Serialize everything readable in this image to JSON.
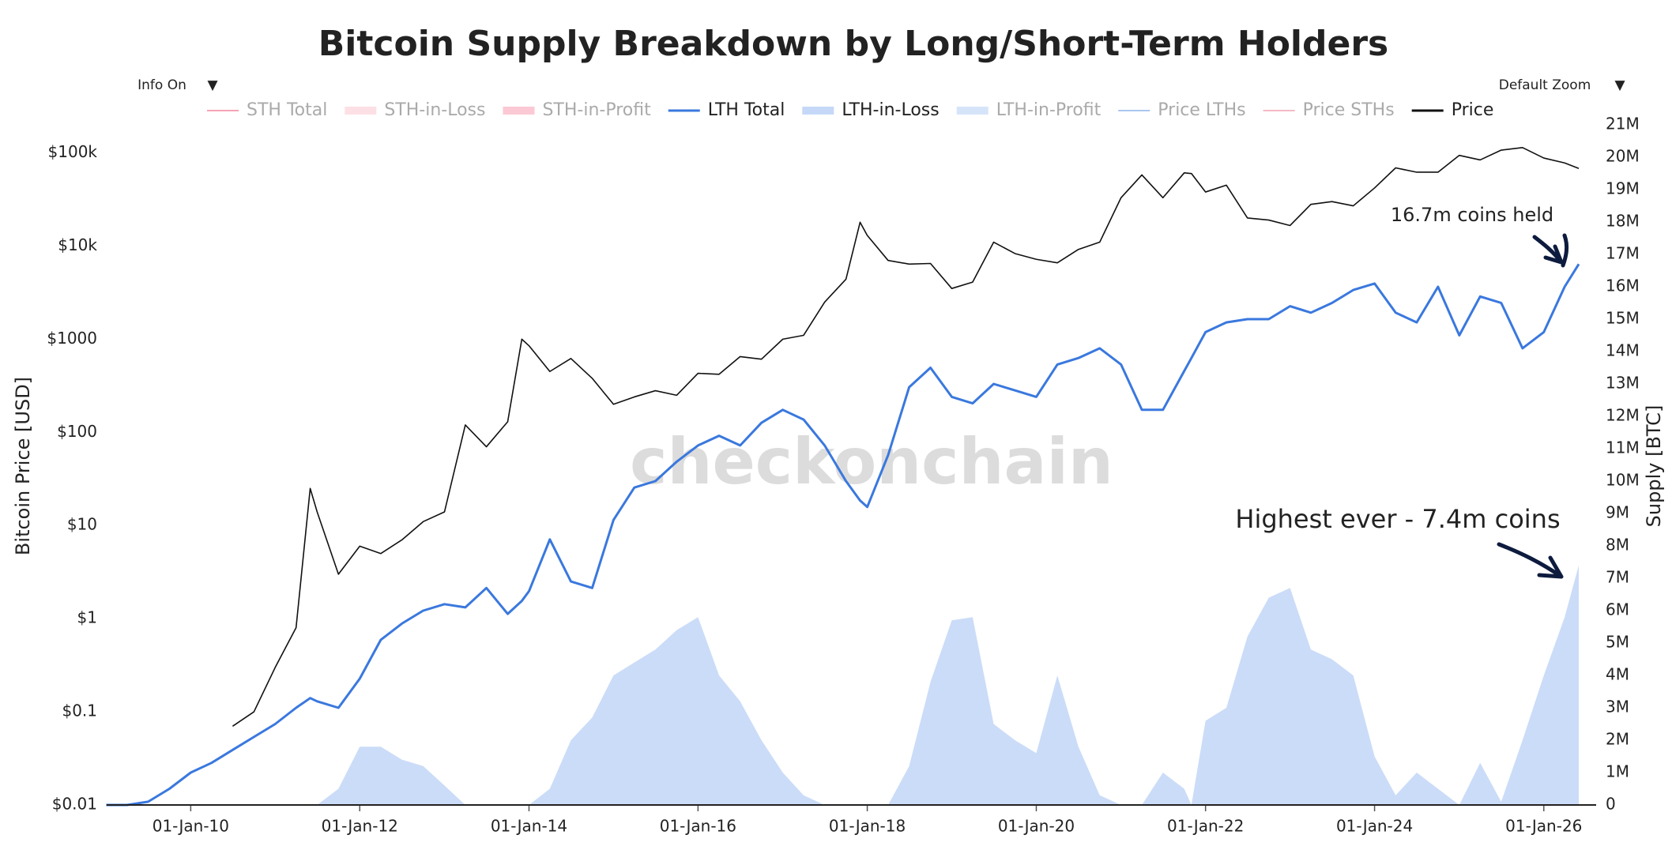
{
  "chart_data": {
    "type": "line",
    "title": "Bitcoin Supply Breakdown by Long/Short-Term Holders",
    "controls": [
      {
        "label": "Info On",
        "icon": "▼"
      },
      {
        "label": "Default Zoom",
        "icon": "▼"
      }
    ],
    "watermark": "checkonchain",
    "y_label": "Bitcoin Price [USD]",
    "y2_label": "Supply [BTC]",
    "log_y": true,
    "grid": false,
    "legend": "top",
    "xlim": [
      "2009-01-03",
      "2026-08-15"
    ],
    "xticks": [
      {
        "value": "2010-01-01",
        "label": "01-Jan-10"
      },
      {
        "value": "2012-01-01",
        "label": "01-Jan-12"
      },
      {
        "value": "2014-01-01",
        "label": "01-Jan-14"
      },
      {
        "value": "2016-01-01",
        "label": "01-Jan-16"
      },
      {
        "value": "2018-01-01",
        "label": "01-Jan-18"
      },
      {
        "value": "2020-01-01",
        "label": "01-Jan-20"
      },
      {
        "value": "2022-01-01",
        "label": "01-Jan-22"
      },
      {
        "value": "2024-01-01",
        "label": "01-Jan-24"
      },
      {
        "value": "2026-01-01",
        "label": "01-Jan-26"
      }
    ],
    "ylim": [
      0.01,
      200000
    ],
    "yticks": [
      {
        "value": 0.01,
        "label": "$0.01"
      },
      {
        "value": 0.1,
        "label": "$0.1"
      },
      {
        "value": 1,
        "label": "$1"
      },
      {
        "value": 10,
        "label": "$10"
      },
      {
        "value": 100,
        "label": "$100"
      },
      {
        "value": 1000,
        "label": "$1000"
      },
      {
        "value": 10000,
        "label": "$10k"
      },
      {
        "value": 100000,
        "label": "$100k"
      }
    ],
    "y2lim": [
      0,
      21000000
    ],
    "y2ticks": [
      0,
      {
        "value": 1000000,
        "label": "1M"
      },
      {
        "value": 2000000,
        "label": "2M"
      },
      {
        "value": 3000000,
        "label": "3M"
      },
      {
        "value": 4000000,
        "label": "4M"
      },
      {
        "value": 5000000,
        "label": "5M"
      },
      {
        "value": 6000000,
        "label": "6M"
      },
      {
        "value": 7000000,
        "label": "7M"
      },
      {
        "value": 8000000,
        "label": "8M"
      },
      {
        "value": 9000000,
        "label": "9M"
      },
      {
        "value": 10000000,
        "label": "10M"
      },
      {
        "value": 11000000,
        "label": "11M"
      },
      {
        "value": 12000000,
        "label": "12M"
      },
      {
        "value": 13000000,
        "label": "13M"
      },
      {
        "value": 14000000,
        "label": "14M"
      },
      {
        "value": 15000000,
        "label": "15M"
      },
      {
        "value": 16000000,
        "label": "16M"
      },
      {
        "value": 17000000,
        "label": "17M"
      },
      {
        "value": 18000000,
        "label": "18M"
      },
      {
        "value": 19000000,
        "label": "19M"
      },
      {
        "value": 20000000,
        "label": "20M"
      },
      {
        "value": 21000000,
        "label": "21M"
      }
    ],
    "x": [
      "2009-01-01",
      "2009-04-01",
      "2009-07-01",
      "2009-10-01",
      "2010-01-01",
      "2010-04-01",
      "2010-07-01",
      "2010-10-01",
      "2011-01-01",
      "2011-04-01",
      "2011-06-01",
      "2011-07-01",
      "2011-10-01",
      "2012-01-01",
      "2012-04-01",
      "2012-07-01",
      "2012-10-01",
      "2013-01-01",
      "2013-04-01",
      "2013-07-01",
      "2013-10-01",
      "2013-12-01",
      "2014-01-01",
      "2014-04-01",
      "2014-07-01",
      "2014-10-01",
      "2015-01-01",
      "2015-04-01",
      "2015-07-01",
      "2015-10-01",
      "2016-01-01",
      "2016-04-01",
      "2016-07-01",
      "2016-10-01",
      "2017-01-01",
      "2017-04-01",
      "2017-07-01",
      "2017-10-01",
      "2017-12-01",
      "2018-01-01",
      "2018-04-01",
      "2018-07-01",
      "2018-10-01",
      "2019-01-01",
      "2019-04-01",
      "2019-07-01",
      "2019-10-01",
      "2020-01-01",
      "2020-04-01",
      "2020-07-01",
      "2020-10-01",
      "2021-01-01",
      "2021-04-01",
      "2021-07-01",
      "2021-10-01",
      "2021-11-01",
      "2022-01-01",
      "2022-04-01",
      "2022-07-01",
      "2022-10-01",
      "2023-01-01",
      "2023-04-01",
      "2023-07-01",
      "2023-10-01",
      "2024-01-01",
      "2024-04-01",
      "2024-07-01",
      "2024-10-01",
      "2025-01-01",
      "2025-04-01",
      "2025-07-01",
      "2025-10-01",
      "2026-01-01",
      "2026-04-01",
      "2026-06-01"
    ],
    "series": [
      {
        "name": "STH Total",
        "color": "#f4a3b4",
        "style": "line",
        "visible": false
      },
      {
        "name": "STH-in-Loss",
        "color": "#fde0e6",
        "style": "area",
        "visible": false
      },
      {
        "name": "STH-in-Profit",
        "color": "#fbc9d4",
        "style": "area",
        "visible": false
      },
      {
        "name": "LTH Total",
        "color": "#3a78de",
        "style": "line",
        "axis": "y2",
        "visible": true,
        "values": [
          0,
          0,
          100000,
          500000,
          1000000,
          1300000,
          1700000,
          2100000,
          2500000,
          3000000,
          3300000,
          3200000,
          3000000,
          3900000,
          5100000,
          5600000,
          6000000,
          6200000,
          6100000,
          6700000,
          5900000,
          6300000,
          6600000,
          8200000,
          6900000,
          6700000,
          8800000,
          9800000,
          10000000,
          10600000,
          11100000,
          11400000,
          11100000,
          11800000,
          12200000,
          11900000,
          11100000,
          10000000,
          9400000,
          9200000,
          10800000,
          12900000,
          13500000,
          12600000,
          12400000,
          13000000,
          12800000,
          12600000,
          13600000,
          13800000,
          14100000,
          13600000,
          12200000,
          12200000,
          13400000,
          13800000,
          14600000,
          14900000,
          15000000,
          15000000,
          15400000,
          15200000,
          15500000,
          15900000,
          16100000,
          15200000,
          14900000,
          16000000,
          14500000,
          15700000,
          15500000,
          14100000,
          14600000,
          16000000,
          16700000
        ]
      },
      {
        "name": "LTH-in-Loss",
        "color": "#c5d8f7",
        "style": "area",
        "axis": "y2",
        "visible": true,
        "values": [
          0,
          0,
          0,
          0,
          0,
          0,
          0,
          0,
          0,
          0,
          0,
          0,
          500000,
          1800000,
          1800000,
          1400000,
          1200000,
          600000,
          0,
          0,
          0,
          0,
          0,
          500000,
          2000000,
          2700000,
          4000000,
          4400000,
          4800000,
          5400000,
          5800000,
          4000000,
          3200000,
          2000000,
          1000000,
          300000,
          0,
          0,
          0,
          0,
          0,
          1200000,
          3800000,
          5700000,
          5800000,
          2500000,
          2000000,
          1600000,
          4000000,
          1800000,
          300000,
          0,
          0,
          1000000,
          500000,
          0,
          2600000,
          3000000,
          5200000,
          6400000,
          6700000,
          4800000,
          4500000,
          4000000,
          1500000,
          300000,
          1000000,
          500000,
          0,
          1300000,
          100000,
          2000000,
          4000000,
          5800000,
          7400000
        ]
      },
      {
        "name": "LTH-in-Profit",
        "color": "#d6e4fa",
        "style": "area",
        "visible": false
      },
      {
        "name": "Price LTHs",
        "color": "#aac6f0",
        "style": "line",
        "visible": false
      },
      {
        "name": "Price STHs",
        "color": "#f4b9c4",
        "style": "line",
        "visible": false
      },
      {
        "name": "Price",
        "color": "#111111",
        "style": "line",
        "axis": "y",
        "visible": true,
        "values": [
          null,
          null,
          null,
          null,
          null,
          null,
          0.07,
          0.1,
          0.3,
          0.8,
          25,
          14,
          3,
          6,
          5,
          7,
          11,
          14,
          120,
          70,
          130,
          1000,
          850,
          450,
          620,
          380,
          200,
          240,
          280,
          250,
          430,
          420,
          650,
          610,
          1000,
          1100,
          2500,
          4400,
          18000,
          13000,
          7000,
          6400,
          6500,
          3500,
          4100,
          11000,
          8300,
          7200,
          6600,
          9200,
          11000,
          33000,
          58000,
          33000,
          61000,
          60000,
          38000,
          45000,
          20000,
          19000,
          16600,
          28000,
          30000,
          27000,
          42000,
          69000,
          62000,
          62000,
          94000,
          84000,
          107000,
          114000,
          88000,
          78000,
          68000
        ]
      }
    ],
    "annotations": [
      {
        "text": "16.7m coins held"
      },
      {
        "text": "Highest ever - 7.4m coins"
      }
    ]
  }
}
